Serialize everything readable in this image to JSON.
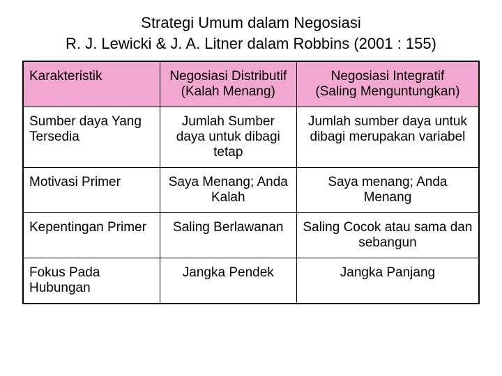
{
  "title_line1": "Strategi Umum dalam Negosiasi",
  "title_line2": "R. J. Lewicki & J. A. Litner dalam Robbins (2001 : 155)",
  "header": {
    "col1": "Karakteristik",
    "col2_line1": "Negosiasi Distributif",
    "col2_line2": "(Kalah Menang)",
    "col3_line1": "Negosiasi Integratif",
    "col3_line2": "(Saling Menguntungkan)"
  },
  "rows": [
    {
      "c1": "Sumber daya Yang Tersedia",
      "c2": "Jumlah Sumber daya untuk dibagi tetap",
      "c3": "Jumlah sumber daya untuk dibagi merupakan variabel"
    },
    {
      "c1": "Motivasi Primer",
      "c2": "Saya Menang; Anda Kalah",
      "c3": "Saya menang; Anda Menang"
    },
    {
      "c1": "Kepentingan Primer",
      "c2": "Saling Berlawanan",
      "c3": "Saling Cocok atau sama dan sebangun"
    },
    {
      "c1": "Fokus Pada Hubungan",
      "c2": "Jangka Pendek",
      "c3": "Jangka Panjang"
    }
  ],
  "style": {
    "header_bg": "#f1a7cf",
    "border_color": "#000000",
    "text_color": "#000000",
    "background": "#ffffff",
    "title_fontsize": 22,
    "cell_fontsize": 19,
    "col_widths_pct": [
      30,
      30,
      40
    ]
  }
}
